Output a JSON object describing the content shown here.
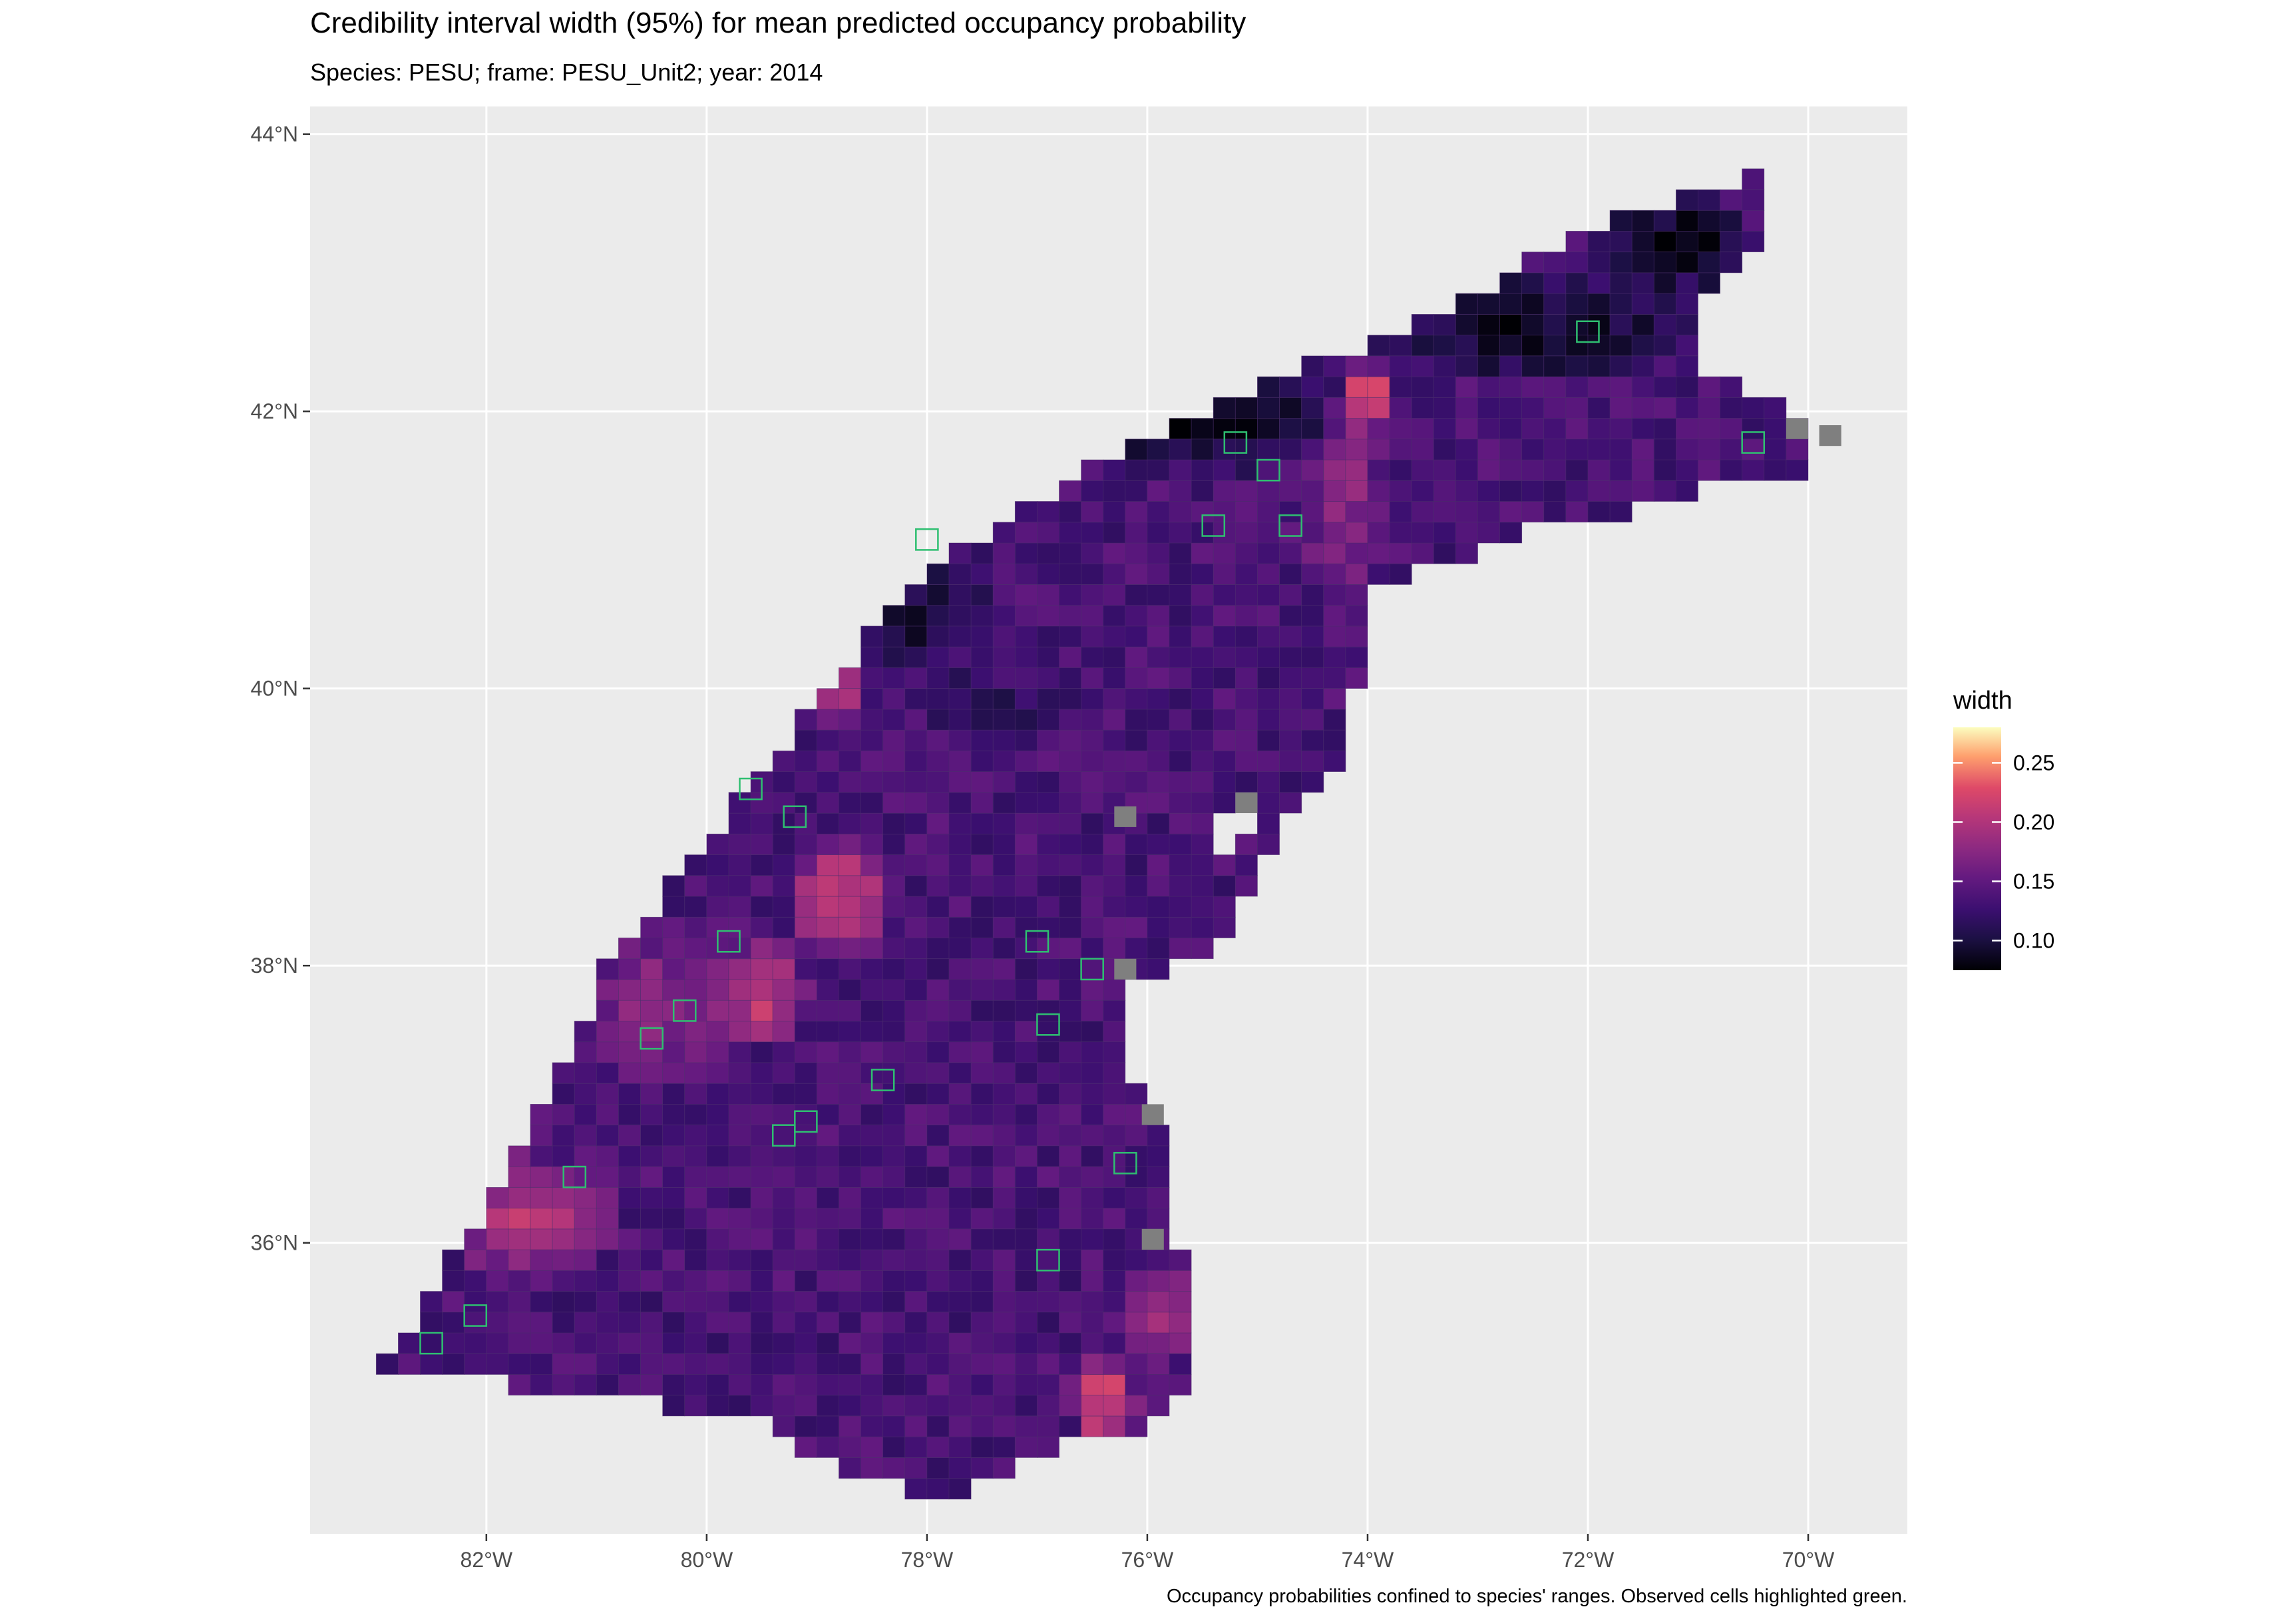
{
  "title": "Credibility interval width (95%) for mean predicted occupancy probability",
  "subtitle": "Species: PESU; frame: PESU_Unit2; year: 2014",
  "caption": "Occupancy probabilities confined to species' ranges. Observed cells highlighted green.",
  "x_axis": {
    "ticks": [
      {
        "value": -82,
        "label": "82°W"
      },
      {
        "value": -80,
        "label": "80°W"
      },
      {
        "value": -78,
        "label": "78°W"
      },
      {
        "value": -76,
        "label": "76°W"
      },
      {
        "value": -74,
        "label": "74°W"
      },
      {
        "value": -72,
        "label": "72°W"
      },
      {
        "value": -70,
        "label": "70°W"
      }
    ],
    "range": [
      -83.6,
      -69.1
    ]
  },
  "y_axis": {
    "ticks": [
      {
        "value": 36,
        "label": "36°N"
      },
      {
        "value": 38,
        "label": "38°N"
      },
      {
        "value": 40,
        "label": "40°N"
      },
      {
        "value": 42,
        "label": "42°N"
      },
      {
        "value": 44,
        "label": "44°N"
      }
    ],
    "range": [
      33.9,
      44.2
    ]
  },
  "legend": {
    "title": "width",
    "range": [
      0.075,
      0.28
    ],
    "ticks": [
      {
        "value": 0.25,
        "label": "0.25"
      },
      {
        "value": 0.2,
        "label": "0.20"
      },
      {
        "value": 0.15,
        "label": "0.15"
      },
      {
        "value": 0.1,
        "label": "0.10"
      }
    ]
  },
  "colors": {
    "panel_background": "#ebebeb",
    "grid_line": "#ffffff",
    "missing_cell": "#7f7f7f",
    "observed_outline": "#2fbf71",
    "cell_border": "#4a2a6a"
  },
  "map_data": {
    "cell_size_deg": 0.2,
    "cell_aspect": 0.75,
    "frame_polygon": [
      [
        -83.0,
        35.05
      ],
      [
        -82.3,
        35.9
      ],
      [
        -81.4,
        37.1
      ],
      [
        -80.9,
        38.0
      ],
      [
        -80.0,
        38.9
      ],
      [
        -79.2,
        39.7
      ],
      [
        -78.6,
        40.3
      ],
      [
        -77.9,
        40.9
      ],
      [
        -77.0,
        41.35
      ],
      [
        -75.9,
        41.85
      ],
      [
        -74.6,
        42.3
      ],
      [
        -73.3,
        42.75
      ],
      [
        -72.0,
        43.3
      ],
      [
        -71.0,
        43.6
      ],
      [
        -70.3,
        43.72
      ],
      [
        -70.5,
        43.2
      ],
      [
        -70.8,
        42.95
      ],
      [
        -71.1,
        42.45
      ],
      [
        -70.9,
        42.2
      ],
      [
        -70.3,
        42.15
      ],
      [
        -70.0,
        41.9
      ],
      [
        -70.1,
        41.55
      ],
      [
        -70.9,
        41.45
      ],
      [
        -71.8,
        41.25
      ],
      [
        -72.7,
        41.1
      ],
      [
        -73.6,
        40.8
      ],
      [
        -73.9,
        40.7
      ],
      [
        -73.9,
        40.4
      ],
      [
        -74.1,
        40.0
      ],
      [
        -74.2,
        39.55
      ],
      [
        -74.6,
        39.2
      ],
      [
        -74.8,
        38.9
      ],
      [
        -75.1,
        38.55
      ],
      [
        -75.3,
        38.2
      ],
      [
        -75.6,
        38.05
      ],
      [
        -76.1,
        37.85
      ],
      [
        -76.3,
        37.3
      ],
      [
        -76.0,
        37.0
      ],
      [
        -75.8,
        36.75
      ],
      [
        -75.8,
        36.3
      ],
      [
        -75.5,
        35.75
      ],
      [
        -75.5,
        35.25
      ],
      [
        -75.8,
        34.8
      ],
      [
        -76.2,
        34.6
      ],
      [
        -77.0,
        34.5
      ],
      [
        -77.8,
        34.15
      ],
      [
        -78.6,
        34.3
      ],
      [
        -79.5,
        34.7
      ],
      [
        -80.5,
        34.85
      ],
      [
        -81.5,
        34.95
      ],
      [
        -82.3,
        35.0
      ]
    ],
    "white_holes": [
      [
        [
          -75.3,
          39.15
        ],
        [
          -75.0,
          39.2
        ],
        [
          -75.0,
          38.9
        ],
        [
          -75.3,
          38.85
        ]
      ],
      [
        [
          -75.75,
          36.1
        ],
        [
          -75.45,
          36.1
        ],
        [
          -75.45,
          35.95
        ],
        [
          -75.75,
          35.95
        ]
      ]
    ],
    "width_zones": [
      {
        "center": [
          -75.6,
          42.0
        ],
        "radius": [
          1.8,
          0.5
        ],
        "width": 0.085
      },
      {
        "center": [
          -72.5,
          42.6
        ],
        "radius": [
          1.6,
          0.45
        ],
        "width": 0.09
      },
      {
        "center": [
          -71.2,
          43.2
        ],
        "radius": [
          0.8,
          0.45
        ],
        "width": 0.085
      },
      {
        "center": [
          -78.2,
          40.6
        ],
        "radius": [
          1.0,
          0.6
        ],
        "width": 0.095
      },
      {
        "center": [
          -77.4,
          39.9
        ],
        "radius": [
          1.0,
          0.4
        ],
        "width": 0.12
      },
      {
        "center": [
          -74.2,
          41.3
        ],
        "radius": [
          0.4,
          1.0
        ],
        "width": 0.175
      },
      {
        "center": [
          -81.6,
          36.2
        ],
        "radius": [
          0.9,
          0.5
        ],
        "width": 0.2
      },
      {
        "center": [
          -80.4,
          37.7
        ],
        "radius": [
          0.8,
          0.6
        ],
        "width": 0.175
      },
      {
        "center": [
          -78.8,
          38.5
        ],
        "radius": [
          0.5,
          0.5
        ],
        "width": 0.215
      },
      {
        "center": [
          -79.5,
          37.8
        ],
        "radius": [
          0.5,
          0.4
        ],
        "width": 0.21
      },
      {
        "center": [
          -76.4,
          34.85
        ],
        "radius": [
          0.35,
          0.35
        ],
        "width": 0.23
      },
      {
        "center": [
          -75.9,
          35.5
        ],
        "radius": [
          0.4,
          0.4
        ],
        "width": 0.195
      },
      {
        "center": [
          -78.8,
          40.0
        ],
        "radius": [
          0.3,
          0.3
        ],
        "width": 0.205
      },
      {
        "center": [
          -74.0,
          42.1
        ],
        "radius": [
          0.25,
          0.3
        ],
        "width": 0.24
      }
    ],
    "default_width": 0.135,
    "missing_cells": [
      [
        -76.3,
        39.0
      ],
      [
        -75.2,
        39.1
      ],
      [
        -76.3,
        37.9
      ],
      [
        -76.05,
        36.85
      ],
      [
        -76.05,
        35.95
      ],
      [
        -70.2,
        41.8
      ],
      [
        -69.9,
        41.75
      ]
    ],
    "observed_cells": [
      [
        -75.3,
        41.7
      ],
      [
        -75.0,
        41.5
      ],
      [
        -74.8,
        41.1
      ],
      [
        -75.5,
        41.1
      ],
      [
        -72.1,
        42.5
      ],
      [
        -78.1,
        41.0
      ],
      [
        -79.7,
        39.2
      ],
      [
        -79.3,
        39.0
      ],
      [
        -80.3,
        37.6
      ],
      [
        -80.6,
        37.4
      ],
      [
        -79.4,
        36.7
      ],
      [
        -79.2,
        36.8
      ],
      [
        -78.5,
        37.1
      ],
      [
        -77.0,
        37.5
      ],
      [
        -76.6,
        37.9
      ],
      [
        -77.1,
        38.1
      ],
      [
        -76.3,
        36.5
      ],
      [
        -77.0,
        35.8
      ],
      [
        -82.6,
        35.2
      ],
      [
        -82.2,
        35.4
      ],
      [
        -81.3,
        36.4
      ],
      [
        -79.9,
        38.1
      ],
      [
        -70.6,
        41.7
      ]
    ]
  }
}
